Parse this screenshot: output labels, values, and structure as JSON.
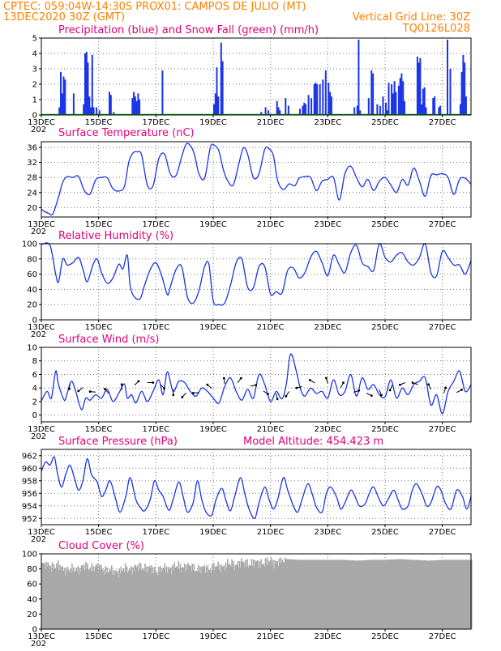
{
  "header": {
    "line1": "CPTEC:   059:04W-14:30S   PROX01: CAMPOS DE JULIO (MT)",
    "line2_left": "13DEC2020 30Z (GMT)",
    "line2_right": "Vertical Grid Line: 30Z",
    "line3_right": "TQ0126L028"
  },
  "x_tick_labels": [
    "13DEC",
    "15DEC",
    "17DEC",
    "19DEC",
    "21DEC",
    "23DEC",
    "25DEC",
    "27DEC"
  ],
  "x_tick_days": [
    0,
    2,
    4,
    6,
    8,
    10,
    12,
    14
  ],
  "year_fragment": "202",
  "colors": {
    "line": "#1a34e8",
    "precip": "#1a34e8",
    "snow": "#00a000",
    "cloud": "#a8a8a8",
    "title": "#e0007a",
    "header": "#ff8000"
  },
  "chart_data": [
    {
      "id": "precip",
      "type": "bar",
      "title": "Precipitation (blue) and Snow Fall (green) (mm/h)",
      "ylim": [
        0,
        5
      ],
      "yticks": [
        "0",
        "1",
        "2",
        "3",
        "4",
        "5"
      ],
      "series": [
        {
          "name": "Precipitation",
          "color": "blue",
          "x": [
            0.6,
            0.65,
            0.7,
            0.75,
            0.8,
            1.1,
            1.45,
            1.5,
            1.55,
            1.6,
            1.65,
            1.7,
            1.75,
            1.8,
            1.9,
            2.0,
            2.35,
            2.4,
            2.5,
            3.15,
            3.2,
            3.25,
            3.3,
            3.35,
            3.4,
            4.2,
            6.0,
            6.05,
            6.1,
            6.15,
            6.25,
            6.3,
            7.65,
            7.8,
            7.9,
            8.2,
            8.25,
            8.3,
            8.5,
            8.6,
            9.0,
            9.1,
            9.15,
            9.2,
            9.3,
            9.4,
            9.5,
            9.55,
            9.6,
            9.7,
            9.8,
            9.9,
            10.0,
            10.05,
            10.1,
            10.9,
            11.0,
            11.05,
            11.1,
            11.4,
            11.5,
            11.55,
            11.7,
            11.8,
            11.9,
            12.0,
            12.05,
            12.1,
            12.2,
            12.25,
            12.3,
            12.35,
            12.45,
            12.5,
            12.55,
            12.6,
            12.65,
            13.1,
            13.15,
            13.2,
            13.25,
            13.3,
            13.35,
            13.4,
            13.65,
            13.7,
            13.85,
            13.9,
            14.15,
            14.25,
            14.6,
            14.65,
            14.7,
            14.75,
            14.8
          ],
          "y": [
            0.5,
            2.8,
            1.4,
            2.5,
            2.3,
            1.4,
            0.7,
            4.0,
            4.1,
            3.4,
            1.2,
            0.5,
            3.9,
            0.5,
            0.5,
            0.3,
            1.5,
            1.3,
            0.2,
            1.1,
            1.5,
            1.2,
            0.9,
            1.4,
            1.0,
            2.9,
            0.7,
            1.4,
            3.1,
            1.2,
            4.7,
            3.5,
            0.2,
            0.5,
            0.3,
            0.9,
            0.5,
            0.3,
            1.1,
            0.6,
            0.4,
            0.6,
            0.8,
            0.7,
            1.3,
            1.1,
            2.0,
            2.1,
            2.0,
            2.0,
            2.3,
            2.9,
            2.1,
            1.5,
            1.2,
            0.5,
            0.6,
            4.9,
            0.3,
            1.1,
            2.9,
            2.7,
            0.7,
            0.6,
            1.2,
            0.8,
            0.3,
            2.1,
            2.0,
            1.4,
            2.2,
            1.5,
            1.9,
            2.4,
            2.7,
            2.2,
            0.9,
            3.8,
            3.4,
            3.7,
            0.7,
            1.7,
            1.8,
            0.5,
            1.1,
            1.2,
            0.5,
            0.6,
            4.9,
            3.0,
            0.7,
            2.8,
            3.9,
            3.4,
            1.2
          ]
        },
        {
          "name": "Snow Fall",
          "color": "green",
          "x": [],
          "y": []
        }
      ]
    },
    {
      "id": "temp",
      "type": "line",
      "title": "Surface Temperature (nC)",
      "ylim": [
        17.5,
        37.5
      ],
      "yticks": [
        "20",
        "24",
        "28",
        "32",
        "36"
      ],
      "ytick_values": [
        20,
        24,
        28,
        32,
        36
      ],
      "series": [
        {
          "name": "Temperature",
          "x": [
            0,
            0.1,
            0.25,
            0.4,
            0.6,
            0.75,
            0.9,
            1.1,
            1.3,
            1.5,
            1.7,
            1.9,
            2.1,
            2.3,
            2.5,
            2.7,
            2.9,
            3.05,
            3.2,
            3.35,
            3.5,
            3.7,
            3.9,
            4.1,
            4.3,
            4.5,
            4.7,
            4.9,
            5.05,
            5.2,
            5.35,
            5.5,
            5.7,
            5.9,
            6.05,
            6.2,
            6.35,
            6.5,
            6.7,
            6.9,
            7.05,
            7.2,
            7.4,
            7.6,
            7.8,
            7.95,
            8.1,
            8.25,
            8.45,
            8.65,
            8.85,
            9.0,
            9.2,
            9.4,
            9.6,
            9.8,
            10.0,
            10.2,
            10.4,
            10.6,
            10.8,
            11.0,
            11.2,
            11.4,
            11.6,
            11.8,
            12.0,
            12.2,
            12.4,
            12.6,
            12.8,
            13.0,
            13.2,
            13.4,
            13.6,
            13.8,
            14.0,
            14.2,
            14.4,
            14.6,
            14.8,
            15.0
          ],
          "y": [
            19.6,
            19.0,
            18.5,
            18.3,
            22.8,
            26.8,
            28.2,
            28.0,
            28.3,
            24.5,
            23.6,
            27.4,
            28.0,
            27.9,
            25.0,
            24.4,
            25.6,
            32.0,
            34.5,
            34.8,
            34.0,
            26.0,
            25.8,
            33.0,
            34.2,
            29.0,
            28.5,
            33.5,
            36.8,
            36.5,
            34.0,
            29.0,
            27.8,
            36.0,
            36.5,
            35.0,
            30.2,
            27.2,
            26.0,
            31.8,
            35.8,
            34.2,
            28.0,
            29.0,
            35.5,
            35.6,
            33.8,
            27.2,
            24.8,
            26.3,
            25.8,
            27.8,
            28.2,
            28.0,
            24.5,
            27.0,
            27.5,
            28.0,
            22.0,
            29.0,
            31.0,
            28.0,
            25.5,
            27.5,
            24.5,
            27.0,
            28.0,
            26.0,
            24.0,
            27.5,
            26.0,
            30.5,
            27.0,
            23.0,
            28.5,
            28.7,
            29.0,
            28.0,
            23.5,
            27.5,
            27.8,
            26.2
          ]
        }
      ]
    },
    {
      "id": "rh",
      "type": "line",
      "title": "Relative Humidity (%)",
      "ylim": [
        0,
        100
      ],
      "yticks": [
        "0",
        "20",
        "40",
        "60",
        "80",
        "100"
      ],
      "ytick_values": [
        0,
        20,
        40,
        60,
        80,
        100
      ],
      "series": [
        {
          "name": "Relative Humidity",
          "x": [
            0,
            0.3,
            0.5,
            0.6,
            0.75,
            0.9,
            1.1,
            1.3,
            1.45,
            1.6,
            1.8,
            1.95,
            2.1,
            2.3,
            2.5,
            2.7,
            2.85,
            3.0,
            3.1,
            3.25,
            3.45,
            3.6,
            3.8,
            4.0,
            4.2,
            4.4,
            4.5,
            4.7,
            4.9,
            5.1,
            5.3,
            5.5,
            5.7,
            5.85,
            6.0,
            6.2,
            6.4,
            6.6,
            6.8,
            7.0,
            7.2,
            7.4,
            7.6,
            7.8,
            8.0,
            8.2,
            8.4,
            8.6,
            8.8,
            9.0,
            9.2,
            9.4,
            9.6,
            9.8,
            10.0,
            10.2,
            10.4,
            10.6,
            10.8,
            11.0,
            11.2,
            11.4,
            11.6,
            11.8,
            12.0,
            12.2,
            12.4,
            12.6,
            12.8,
            13.0,
            13.2,
            13.4,
            13.6,
            13.8,
            14.0,
            14.2,
            14.4,
            14.6,
            14.8,
            15.0
          ],
          "y": [
            99,
            98,
            60,
            50,
            80,
            72,
            75,
            82,
            67,
            50,
            72,
            80,
            62,
            48,
            55,
            73,
            67,
            85,
            45,
            30,
            28,
            45,
            66,
            75,
            58,
            33,
            43,
            66,
            70,
            30,
            22,
            38,
            70,
            73,
            25,
            20,
            22,
            45,
            75,
            80,
            43,
            42,
            70,
            70,
            34,
            37,
            35,
            65,
            68,
            55,
            62,
            82,
            90,
            75,
            58,
            85,
            72,
            62,
            88,
            98,
            75,
            70,
            65,
            100,
            82,
            76,
            85,
            88,
            76,
            72,
            82,
            100,
            62,
            58,
            90,
            82,
            72,
            72,
            60,
            78
          ]
        }
      ]
    },
    {
      "id": "wind",
      "type": "line",
      "title": "Surface Wind (m/s)",
      "ylim": [
        -1,
        10
      ],
      "yticks": [
        "0",
        "2",
        "4",
        "6",
        "8",
        "10"
      ],
      "ytick_values": [
        0,
        2,
        4,
        6,
        8,
        10
      ],
      "series": [
        {
          "name": "Wind speed",
          "x": [
            0,
            0.2,
            0.35,
            0.5,
            0.6,
            0.8,
            0.9,
            1.05,
            1.2,
            1.4,
            1.55,
            1.7,
            1.9,
            2.1,
            2.3,
            2.5,
            2.7,
            2.9,
            3.0,
            3.15,
            3.3,
            3.5,
            3.7,
            3.9,
            4.1,
            4.25,
            4.4,
            4.6,
            4.8,
            5.0,
            5.2,
            5.4,
            5.6,
            5.8,
            6.0,
            6.2,
            6.4,
            6.6,
            6.8,
            7.0,
            7.2,
            7.4,
            7.6,
            7.8,
            8.0,
            8.2,
            8.4,
            8.55,
            8.7,
            8.9,
            9.05,
            9.2,
            9.4,
            9.6,
            9.8,
            10.0,
            10.2,
            10.4,
            10.6,
            10.8,
            11.0,
            11.2,
            11.4,
            11.6,
            11.8,
            12.0,
            12.2,
            12.4,
            12.6,
            12.8,
            13.0,
            13.2,
            13.4,
            13.6,
            13.8,
            14.0,
            14.2,
            14.4,
            14.6,
            14.8,
            15.0
          ],
          "y": [
            2.1,
            3.5,
            2.5,
            6.5,
            4.5,
            2.2,
            3.2,
            5.0,
            3.5,
            0.8,
            2.5,
            2.2,
            3.0,
            2.5,
            3.8,
            2.0,
            3.2,
            4.6,
            2.5,
            3.0,
            1.8,
            3.5,
            2.0,
            3.5,
            5.2,
            3.0,
            6.4,
            3.5,
            5.0,
            4.8,
            3.5,
            2.8,
            4.0,
            3.5,
            2.5,
            1.8,
            4.2,
            5.5,
            3.5,
            2.2,
            3.8,
            2.5,
            6.0,
            4.5,
            2.0,
            3.5,
            2.4,
            4.5,
            9.0,
            6.5,
            3.8,
            2.8,
            4.0,
            3.2,
            3.5,
            2.5,
            5.2,
            3.0,
            3.5,
            6.0,
            2.8,
            5.5,
            3.8,
            4.5,
            3.0,
            2.7,
            5.2,
            2.5,
            4.0,
            3.0,
            4.5,
            5.0,
            5.5,
            1.5,
            3.0,
            0.2,
            3.5,
            5.0,
            6.5,
            3.5,
            4.5
          ]
        }
      ]
    },
    {
      "id": "pres",
      "type": "line",
      "title": "Surface Pressure (hPa)",
      "annotation": "Model Altitude: 454.423 m",
      "ylim": [
        951,
        963
      ],
      "yticks": [
        "952",
        "954",
        "956",
        "958",
        "960",
        "962"
      ],
      "ytick_values": [
        952,
        954,
        956,
        958,
        960,
        962
      ],
      "series": [
        {
          "name": "Pressure",
          "x": [
            0,
            0.15,
            0.3,
            0.45,
            0.55,
            0.7,
            0.85,
            1.0,
            1.15,
            1.3,
            1.45,
            1.6,
            1.75,
            1.95,
            2.1,
            2.25,
            2.4,
            2.6,
            2.75,
            2.95,
            3.1,
            3.3,
            3.45,
            3.6,
            3.8,
            3.95,
            4.1,
            4.25,
            4.45,
            4.6,
            4.8,
            4.95,
            5.1,
            5.3,
            5.45,
            5.6,
            5.75,
            5.95,
            6.1,
            6.3,
            6.45,
            6.6,
            6.75,
            6.95,
            7.1,
            7.25,
            7.45,
            7.6,
            7.8,
            7.95,
            8.1,
            8.25,
            8.45,
            8.6,
            8.8,
            8.95,
            9.1,
            9.3,
            9.45,
            9.6,
            9.8,
            9.95,
            10.1,
            10.3,
            10.45,
            10.6,
            10.8,
            10.95,
            11.1,
            11.3,
            11.45,
            11.6,
            11.8,
            11.95,
            12.1,
            12.3,
            12.45,
            12.6,
            12.8,
            12.95,
            13.1,
            13.3,
            13.45,
            13.6,
            13.8,
            13.95,
            14.1,
            14.3,
            14.5,
            14.7,
            14.85,
            15.0
          ],
          "y": [
            959.5,
            961.0,
            960.5,
            961.8,
            959.5,
            957.0,
            959.0,
            960.5,
            958.5,
            956.5,
            958.0,
            961.5,
            959.0,
            957.8,
            955.5,
            956.5,
            958.0,
            955.0,
            953.0,
            955.5,
            958.5,
            955.0,
            953.8,
            953.2,
            955.0,
            958.0,
            956.5,
            955.5,
            953.3,
            955.0,
            957.8,
            955.5,
            953.0,
            954.5,
            958.0,
            955.0,
            953.0,
            952.5,
            955.0,
            956.8,
            954.8,
            953.2,
            955.5,
            958.5,
            956.0,
            953.5,
            952.0,
            954.5,
            957.0,
            955.0,
            953.5,
            955.0,
            958.5,
            956.5,
            954.0,
            953.0,
            955.0,
            957.5,
            956.0,
            953.8,
            953.0,
            956.0,
            957.0,
            955.5,
            953.5,
            954.5,
            956.5,
            955.5,
            954.0,
            954.3,
            956.0,
            957.0,
            955.0,
            954.0,
            955.0,
            956.5,
            955.0,
            953.5,
            954.0,
            956.5,
            957.5,
            955.8,
            954.0,
            954.5,
            957.0,
            956.5,
            954.5,
            953.5,
            956.5,
            955.5,
            953.5,
            955.5
          ]
        }
      ]
    },
    {
      "id": "cloud",
      "type": "bar",
      "title": "Cloud Cover (%)",
      "ylim": [
        0,
        100
      ],
      "yticks": [
        "0",
        "20",
        "40",
        "60",
        "80",
        "100"
      ],
      "ytick_values": [
        0,
        20,
        40,
        60,
        80,
        100
      ],
      "series": [
        {
          "name": "Cloud Cover",
          "x_step_days": 0.03,
          "profile_x": [
            0,
            0.5,
            1.0,
            1.5,
            2.0,
            2.5,
            3.0,
            3.5,
            4.0,
            4.5,
            5.0,
            5.5,
            6.0,
            6.5,
            7.0,
            7.5,
            8.0,
            8.5,
            9.0,
            9.5,
            10.0,
            10.5,
            11.0,
            11.5,
            12.0,
            12.5,
            13.0,
            13.5,
            14.0,
            14.5,
            15.0
          ],
          "profile_y": [
            88,
            86,
            80,
            85,
            84,
            78,
            82,
            85,
            80,
            84,
            86,
            82,
            84,
            88,
            90,
            90,
            92,
            93,
            92,
            92,
            92,
            92,
            91,
            92,
            92,
            93,
            92,
            91,
            92,
            92,
            92
          ]
        }
      ]
    }
  ]
}
